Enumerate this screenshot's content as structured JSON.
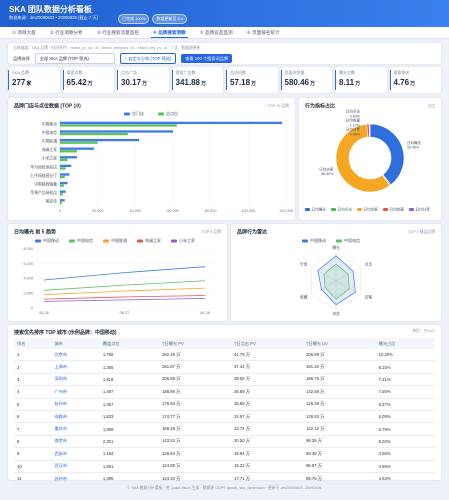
{
  "header": {
    "title": "SKA 团队数据分析看板",
    "subtitle": "数据来源：dm20090603 • 20090626 (截止 7 天)",
    "badges": [
      "已完成 100%",
      "数据更新至 5.4"
    ]
  },
  "tabs": [
    "① 项目大盘",
    "② 行业洞察分析",
    "③ 行业搜索流量监控",
    "④ 品牌搜索洞察",
    "⑤ 品牌竞品监测",
    "⑥ 页面排名统计"
  ],
  "active_tab": 3,
  "filters": {
    "breadcrumb": "当前维度：SKA 品牌 · 时间序列：brand_pv_uv_d1 / brand_behavior_d1 / brand_city_pv_d1 · 7 天 · 数据源更新",
    "label": "品牌选择",
    "select": "全部 SKA 品牌 (TOP 筛选)",
    "button": "+ 自定义分析 (TOP 筛选)",
    "link": "查看 100 个搜索词品牌"
  },
  "kpis": [
    {
      "label": "SKA 品牌",
      "value": 277,
      "unit": "家"
    },
    {
      "label": "搜索次数",
      "value": 65.42,
      "unit": "万"
    },
    {
      "label": "点击广告",
      "value": 30.17,
      "unit": "万"
    },
    {
      "label": "搜索广告数",
      "value": 341.88,
      "unit": "万"
    },
    {
      "label": "总访问数",
      "value": 57.18,
      "unit": "万"
    },
    {
      "label": "页面浏览量",
      "value": 580.46,
      "unit": "万"
    },
    {
      "label": "曝光次数",
      "value": 8.11,
      "unit": "万"
    },
    {
      "label": "搜索排名",
      "value": 4.76,
      "unit": "万"
    }
  ],
  "chart_data": [
    {
      "type": "bar",
      "orientation": "horizontal",
      "title": "品牌门店与点位数据 (TOP 10)",
      "note": "TOP 10 品牌",
      "categories": [
        "中国移动",
        "中国电信",
        "中国联通",
        "海澜之家",
        "小米之家",
        "华为授权体验店",
        "九牛网络营业厅",
        "中国邮政储蓄",
        "苹果产品授权店",
        "美宜佳"
      ],
      "series": [
        {
          "name": "总门店",
          "color": "#3d7be8",
          "values": [
            118000,
            60000,
            42000,
            18000,
            9000,
            6000,
            5000,
            4000,
            3000,
            2500
          ]
        },
        {
          "name": "总点位",
          "color": "#5cc05c",
          "values": [
            62000,
            36000,
            20000,
            9000,
            4000,
            3000,
            2500,
            2000,
            1500,
            1000
          ]
        }
      ],
      "xlim": [
        0,
        120000
      ],
      "xticks": [
        0,
        {
          "value": 20000,
          "label": "20,000"
        },
        {
          "value": 40000,
          "label": "40,000"
        },
        {
          "value": 60000,
          "label": "60,000"
        },
        {
          "value": 80000,
          "label": "80,000"
        },
        {
          "value": 100000,
          "label": "100,000"
        },
        {
          "value": 120000,
          "label": "120,000"
        }
      ],
      "grid": true
    },
    {
      "type": "pie",
      "donut": true,
      "title": "行为指标占比",
      "note": "占比",
      "categories": [
        "日均曝光",
        "日均点击",
        "日均访客",
        "日均收藏",
        "日均分享"
      ],
      "values": [
        39.48,
        0.6,
        58.4,
        1.12,
        0.4
      ],
      "value_labels": [
        "39.48%",
        "0.60%",
        "58.40%",
        "1.12%",
        "0.40%"
      ],
      "colors": [
        "#2f6fdd",
        "#52b852",
        "#f5a623",
        "#e8534a",
        "#8e5bd6"
      ]
    },
    {
      "type": "line",
      "title": "日均曝光 前 5 趋势",
      "note": "TOP 5 品牌",
      "x": [
        "06-26",
        "06-27",
        "06-28"
      ],
      "series": [
        {
          "name": "中国移动",
          "color": "#3d7be8",
          "values": [
            3800,
            4800,
            5600
          ]
        },
        {
          "name": "中国电信",
          "color": "#5cc05c",
          "values": [
            2400,
            3100,
            3700
          ]
        },
        {
          "name": "中国联通",
          "color": "#f5a623",
          "values": [
            1800,
            2300,
            2700
          ]
        },
        {
          "name": "海澜之家",
          "color": "#e8534a",
          "values": [
            1200,
            1500,
            1700
          ]
        },
        {
          "name": "小米之家",
          "color": "#8e5bd6",
          "values": [
            900,
            1100,
            1300
          ]
        }
      ],
      "ylim": [
        0,
        8000
      ],
      "yticks": [
        0,
        {
          "value": 2000,
          "label": "2,000"
        },
        {
          "value": 4000,
          "label": "4,000"
        },
        {
          "value": 6000,
          "label": "6,000"
        },
        {
          "value": 8000,
          "label": "8,000"
        }
      ],
      "grid": true
    },
    {
      "type": "radar",
      "title": "品牌行为雷达",
      "note": "TOP 2 精品品牌",
      "indicators": [
        "曝光",
        "点击",
        "访客",
        "浏览",
        "收藏",
        "分享"
      ],
      "rlim": [
        0,
        100
      ],
      "series": [
        {
          "name": "中国移动",
          "color": "#3d7be8",
          "values": [
            90,
            70,
            80,
            85,
            60,
            75
          ]
        },
        {
          "name": "中国电信",
          "color": "#5cc05c",
          "values": [
            60,
            50,
            55,
            65,
            45,
            50
          ]
        }
      ]
    }
  ],
  "table": {
    "title": "搜索优先排序 TOP 城市 (示例品牌：中国移动)",
    "note": "单位：PV/UV",
    "columns": [
      "排名",
      "城市",
      "覆盖点位",
      "7日曝光 PV",
      "7日点击 PV",
      "7日曝光 UV",
      "曝光占比"
    ],
    "rows": [
      [
        "1",
        "北京市",
        "1,768",
        "282.49 万",
        "41.78 万",
        "206.89 万",
        "10.20%"
      ],
      [
        "2",
        "上海市",
        "1,355",
        "261.87 万",
        "37.42 万",
        "181.32 万",
        "8.15%"
      ],
      [
        "3",
        "深圳市",
        "1,818",
        "206.88 万",
        "29.56 万",
        "186.75 万",
        "7.21%"
      ],
      [
        "4",
        "广州市",
        "1,497",
        "188.86 万",
        "28.69 万",
        "142.58 万",
        "7.50%"
      ],
      [
        "5",
        "杭州市",
        "1,357",
        "176.84 万",
        "25.69 万",
        "126.39 万",
        "6.27%"
      ],
      [
        "6",
        "成都市",
        "1,833",
        "174.77 万",
        "24.97 万",
        "126.83 万",
        "6.09%"
      ],
      [
        "7",
        "重庆市",
        "1,899",
        "166.26 万",
        "23.74 万",
        "122.12 万",
        "5.78%"
      ],
      [
        "8",
        "南京市",
        "2,301",
        "143.52 万",
        "20.50 万",
        "98.38 万",
        "5.03%"
      ],
      [
        "9",
        "西安市",
        "1,164",
        "126.84 万",
        "18.94 万",
        "93.39 万",
        "4.55%"
      ],
      [
        "10",
        "武汉市",
        "1,591",
        "124.89 万",
        "16.22 万",
        "95.97 万",
        "4.69%"
      ],
      [
        "11",
        "苏州市",
        "1,396",
        "124.34 万",
        "17.71 万",
        "89.78 万",
        "4.63%"
      ]
    ]
  },
  "footer": "© SKA 数据分析看板 · 由 QuickVision 生成 · 数据源 ODPS goods_sku_dimension · 更新于 dm20090603, 20090626"
}
